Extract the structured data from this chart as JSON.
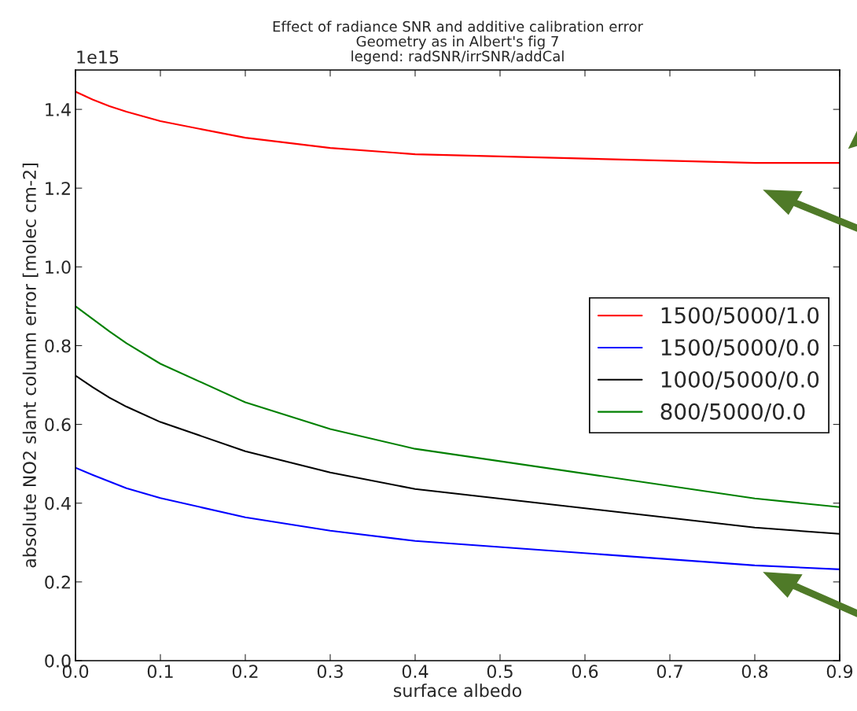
{
  "chart_data": {
    "type": "line",
    "title": "Effect of radiance SNR and additive calibration error\nGeometry as in Albert's fig 7\nlegend: radSNR/irrSNR/addCal",
    "xlabel": "surface albedo",
    "ylabel": "absolute NO2 slant column error [molec cm-2]",
    "annotations": [
      "1e15"
    ],
    "x": [
      0,
      0.02,
      0.04,
      0.06,
      0.1,
      0.2,
      0.3,
      0.4,
      0.8,
      0.9
    ],
    "series": [
      {
        "name": "1500/5000/1.0",
        "color": "#ff0000",
        "values": [
          1.445,
          1.425,
          1.408,
          1.394,
          1.37,
          1.328,
          1.302,
          1.286,
          1.264,
          1.264
        ]
      },
      {
        "name": "1500/5000/0.0",
        "color": "#0000ff",
        "values": [
          0.49,
          0.472,
          0.455,
          0.438,
          0.413,
          0.364,
          0.33,
          0.304,
          0.242,
          0.232
        ]
      },
      {
        "name": "1000/5000/0.0",
        "color": "#000000",
        "values": [
          0.724,
          0.695,
          0.668,
          0.645,
          0.606,
          0.532,
          0.478,
          0.436,
          0.338,
          0.322
        ]
      },
      {
        "name": "800/5000/0.0",
        "color": "#008000",
        "values": [
          0.9,
          0.868,
          0.836,
          0.806,
          0.754,
          0.656,
          0.588,
          0.538,
          0.412,
          0.39
        ]
      }
    ],
    "xlim": [
      0,
      0.9
    ],
    "xticks": [
      {
        "value": 0,
        "label": "0.0"
      },
      0.1,
      0.2,
      0.3,
      0.4,
      0.5,
      0.6,
      0.7,
      0.8,
      0.9
    ],
    "ylim": [
      0,
      1.5
    ],
    "yticks": [
      {
        "value": 0,
        "label": "0.0"
      },
      0.2,
      0.4,
      0.6,
      0.8,
      {
        "value": 1,
        "label": "1.0"
      },
      1.2,
      1.4
    ],
    "legend": "center right",
    "grid": false
  }
}
